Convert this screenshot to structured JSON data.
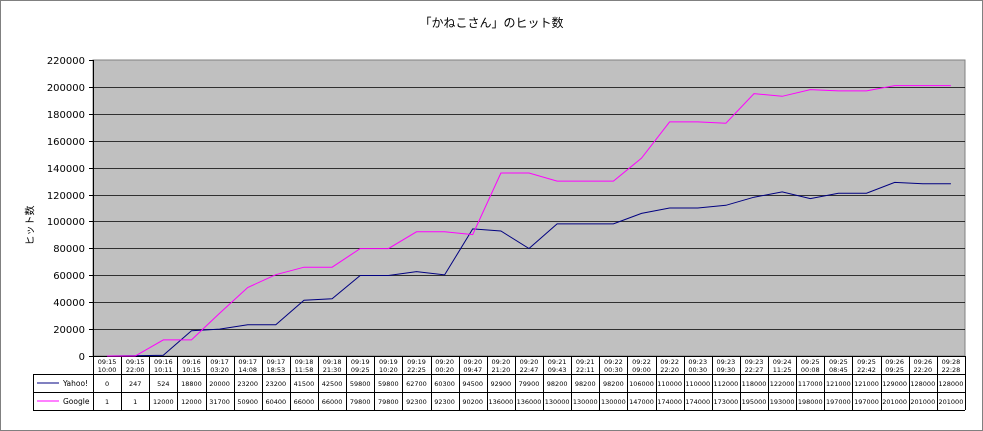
{
  "chart_data": {
    "type": "line",
    "title": "「かねこさん」のヒット数",
    "xlabel": "",
    "ylabel": "ヒット数",
    "ylim": [
      0,
      220000
    ],
    "yticks": [
      "0",
      "20000",
      "40000",
      "60000",
      "80000",
      "100000",
      "120000",
      "140000",
      "160000",
      "180000",
      "200000",
      "220000"
    ],
    "grid": true,
    "legend": "data-table-left",
    "categories": [
      [
        "09:15",
        "10:00"
      ],
      [
        "09:15",
        "22:00"
      ],
      [
        "09:16",
        "10:11"
      ],
      [
        "09:16",
        "10:15"
      ],
      [
        "09:17",
        "03:20"
      ],
      [
        "09:17",
        "14:08"
      ],
      [
        "09:17",
        "18:53"
      ],
      [
        "09:18",
        "11:58"
      ],
      [
        "09:18",
        "21:30"
      ],
      [
        "09:19",
        "09:25"
      ],
      [
        "09:19",
        "10:20"
      ],
      [
        "09:19",
        "22:25"
      ],
      [
        "09:20",
        "00:20"
      ],
      [
        "09:20",
        "09:47"
      ],
      [
        "09:20",
        "21:20"
      ],
      [
        "09:20",
        "22:47"
      ],
      [
        "09:21",
        "09:43"
      ],
      [
        "09:21",
        "22:11"
      ],
      [
        "09:22",
        "00:30"
      ],
      [
        "09:22",
        "09:00"
      ],
      [
        "09:22",
        "22:20"
      ],
      [
        "09:23",
        "00:30"
      ],
      [
        "09:23",
        "09:30"
      ],
      [
        "09:23",
        "22:27"
      ],
      [
        "09:24",
        "11:25"
      ],
      [
        "09:25",
        "00:08"
      ],
      [
        "09:25",
        "08:45"
      ],
      [
        "09:25",
        "22:42"
      ],
      [
        "09:26",
        "09:25"
      ],
      [
        "09:26",
        "22:20"
      ],
      [
        "09:28",
        "22:28"
      ]
    ],
    "series": [
      {
        "name": "Yahoo!",
        "color": "#000080",
        "values": [
          0,
          247,
          524,
          18800,
          20000,
          23200,
          23200,
          41500,
          42500,
          59800,
          59800,
          62700,
          60300,
          94500,
          92900,
          79900,
          98200,
          98200,
          98200,
          106000,
          110000,
          110000,
          112000,
          118000,
          122000,
          117000,
          121000,
          121000,
          129000,
          128000,
          128000
        ]
      },
      {
        "name": "Google",
        "color": "#ff00ff",
        "values": [
          1,
          1,
          12000,
          12000,
          31700,
          50900,
          60400,
          66000,
          66000,
          79800,
          79800,
          92300,
          92300,
          90200,
          136000,
          136000,
          130000,
          130000,
          130000,
          147000,
          174000,
          174000,
          173000,
          195000,
          193000,
          198000,
          197000,
          197000,
          201000,
          201000,
          201000
        ]
      }
    ]
  }
}
